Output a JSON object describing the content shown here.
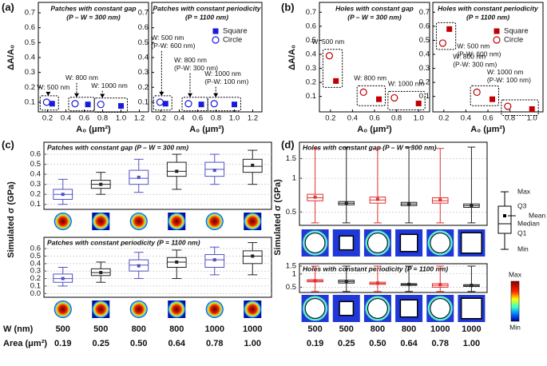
{
  "panel_labels": [
    "(a)",
    "(b)",
    "(c)",
    "(d)"
  ],
  "chart_data": [
    {
      "type": "scatter",
      "title": "Patches with constant gap",
      "subtitle": "(P – W = 300 nm)",
      "ylabel": "ΔA/A₀",
      "xlabel": "A₀ (μm²)",
      "xlim": [
        0.1,
        1.3
      ],
      "ylim": [
        0.035,
        0.77
      ],
      "xticks": [
        0.2,
        0.4,
        0.6,
        0.8,
        {
          "value": 1,
          "label": "1.0"
        },
        1.2
      ],
      "yticks": [
        0.1,
        0.2,
        0.3,
        0.4,
        0.5,
        0.6,
        0.7
      ],
      "series": [
        {
          "name": "Square",
          "color": "#1a1adb",
          "marker": "square",
          "x": [
            0.25,
            0.64,
            1.0
          ],
          "values": [
            0.09,
            0.085,
            0.075
          ]
        },
        {
          "name": "Circle",
          "color": "#1a1adb",
          "marker": "circle",
          "x": [
            0.19,
            0.5,
            0.78
          ],
          "values": [
            0.1,
            0.09,
            0.085
          ]
        }
      ],
      "annotations": [
        [
          "W: 500 nm"
        ],
        [
          "W: 800 nm"
        ],
        [
          "W: 1000 nm"
        ]
      ]
    },
    {
      "type": "scatter",
      "title": "Patches with constant periodicity",
      "subtitle": "(P = 1100 nm)",
      "xlabel": "A₀ (μm²)",
      "xlim": [
        0.1,
        1.3
      ],
      "ylim": [
        0.035,
        0.77
      ],
      "xticks": [
        0.2,
        0.4,
        0.6,
        0.8,
        {
          "value": 1,
          "label": "1.0"
        },
        1.2
      ],
      "yticks": [
        0.1,
        0.2,
        0.3,
        0.4,
        0.5,
        0.6,
        0.7
      ],
      "legend": "top-right",
      "series": [
        {
          "name": "Square",
          "color": "#1a1adb",
          "marker": "square",
          "x": [
            0.25,
            0.64,
            1.0
          ],
          "values": [
            0.09,
            0.085,
            0.085
          ]
        },
        {
          "name": "Circle",
          "color": "#1a1adb",
          "marker": "circle",
          "x": [
            0.19,
            0.5,
            0.78
          ],
          "values": [
            0.1,
            0.09,
            0.09
          ]
        }
      ],
      "annotations": [
        [
          "W: 500 nm",
          "(P-W: 600 nm)"
        ],
        [
          "W: 800 nm",
          "(P-W: 300 nm)"
        ],
        [
          "W: 1000 nm",
          "(P-W: 100 nm)"
        ]
      ]
    },
    {
      "type": "scatter",
      "title": "Holes with constant gap",
      "subtitle": "(P – W = 300 nm)",
      "ylabel": "ΔA/A₀",
      "xlabel": "A₀ (μm²)",
      "xlim": [
        0.1,
        1.1
      ],
      "ylim": [
        -0.01,
        0.77
      ],
      "xticks": [
        0.2,
        0.4,
        0.6,
        0.8,
        {
          "value": 1,
          "label": "1.0"
        }
      ],
      "yticks": [
        0.1,
        0.2,
        0.3,
        0.4,
        0.5,
        0.6,
        0.7
      ],
      "series": [
        {
          "name": "Square",
          "color": "#c00000",
          "marker": "square",
          "x": [
            0.25,
            0.64,
            1.0
          ],
          "values": [
            0.21,
            0.08,
            0.05
          ]
        },
        {
          "name": "Circle",
          "color": "#c00000",
          "marker": "circle",
          "x": [
            0.19,
            0.5,
            0.78
          ],
          "values": [
            0.39,
            0.13,
            0.09
          ]
        }
      ],
      "annotations": [
        [
          "W: 500 nm"
        ],
        [
          "W: 800 nm"
        ],
        [
          "W: 1000 nm"
        ]
      ]
    },
    {
      "type": "scatter",
      "title": "Holes with constant periodicity",
      "subtitle": "(P = 1100 nm)",
      "xlabel": "A₀ (μm²)",
      "xlim": [
        0.1,
        1.1
      ],
      "ylim": [
        -0.01,
        0.77
      ],
      "xticks": [
        0.2,
        0.4,
        0.6,
        0.8,
        {
          "value": 1,
          "label": "1.0"
        }
      ],
      "yticks": [
        0.1,
        0.2,
        0.3,
        0.4,
        0.5,
        0.6,
        0.7
      ],
      "legend": "top-right",
      "series": [
        {
          "name": "Square",
          "color": "#c00000",
          "marker": "square",
          "x": [
            0.25,
            0.64,
            1.0
          ],
          "values": [
            0.58,
            0.08,
            0.01
          ]
        },
        {
          "name": "Circle",
          "color": "#c00000",
          "marker": "circle",
          "x": [
            0.19,
            0.5,
            0.78
          ],
          "values": [
            0.48,
            0.13,
            0.03
          ]
        }
      ],
      "annotations": [
        [
          "W: 500 nm",
          "(P-W: 600 nm)"
        ],
        [
          "W: 800 nm",
          "(P-W: 300 nm)"
        ],
        [
          "W: 1000 nm",
          "(P-W: 100 nm)"
        ]
      ]
    },
    {
      "type": "box",
      "title": "Patches with constant gap (P – W = 300 nm)",
      "ylabel": "Simulated σ (GPa)",
      "grid": true,
      "ylim": [
        0.05,
        0.72
      ],
      "yticks": [
        0.1,
        0.2,
        0.3,
        0.4,
        0.5,
        0.6
      ],
      "boxes": [
        {
          "min": 0.1,
          "q1": 0.15,
          "median": 0.2,
          "q3": 0.25,
          "max": 0.35,
          "mean": 0.2,
          "color": "#5050c8"
        },
        {
          "min": 0.2,
          "q1": 0.26,
          "median": 0.3,
          "q3": 0.34,
          "max": 0.42,
          "mean": 0.3,
          "color": "#222222"
        },
        {
          "min": 0.22,
          "q1": 0.3,
          "median": 0.36,
          "q3": 0.44,
          "max": 0.55,
          "mean": 0.37,
          "color": "#5050c8"
        },
        {
          "min": 0.25,
          "q1": 0.38,
          "median": 0.43,
          "q3": 0.52,
          "max": 0.6,
          "mean": 0.43,
          "color": "#222222"
        },
        {
          "min": 0.3,
          "q1": 0.38,
          "median": 0.45,
          "q3": 0.52,
          "max": 0.6,
          "mean": 0.44,
          "color": "#5050c8"
        },
        {
          "min": 0.3,
          "q1": 0.42,
          "median": 0.48,
          "q3": 0.55,
          "max": 0.64,
          "mean": 0.49,
          "color": "#222222"
        }
      ]
    },
    {
      "type": "box",
      "title": "Patches with constant periodicity (P = 1100 nm)",
      "grid": true,
      "ylim": [
        -0.05,
        0.75
      ],
      "yticks": [
        {
          "value": 0,
          "label": "0.0"
        },
        0.1,
        0.2,
        0.3,
        0.4,
        0.5,
        0.6
      ],
      "boxes": [
        {
          "min": 0.1,
          "q1": 0.15,
          "median": 0.2,
          "q3": 0.26,
          "max": 0.35,
          "mean": 0.2,
          "color": "#5050c8"
        },
        {
          "min": 0.15,
          "q1": 0.24,
          "median": 0.28,
          "q3": 0.33,
          "max": 0.42,
          "mean": 0.28,
          "color": "#222222"
        },
        {
          "min": 0.2,
          "q1": 0.3,
          "median": 0.38,
          "q3": 0.45,
          "max": 0.55,
          "mean": 0.37,
          "color": "#5050c8"
        },
        {
          "min": 0.2,
          "q1": 0.35,
          "median": 0.42,
          "q3": 0.48,
          "max": 0.58,
          "mean": 0.42,
          "color": "#222222"
        },
        {
          "min": 0.25,
          "q1": 0.35,
          "median": 0.45,
          "q3": 0.52,
          "max": 0.62,
          "mean": 0.45,
          "color": "#5050c8"
        },
        {
          "min": 0.25,
          "q1": 0.4,
          "median": 0.5,
          "q3": 0.57,
          "max": 0.68,
          "mean": 0.5,
          "color": "#222222"
        }
      ]
    },
    {
      "type": "box",
      "title": "Holes with constant gap (P – W = 300 nm)",
      "ylabel": "Simulated σ (GPa)",
      "grid": true,
      "log": true,
      "ylim": [
        0.38,
        2.1
      ],
      "yticks": [
        0.5,
        1,
        1.5
      ],
      "boxes": [
        {
          "min": 0.4,
          "q1": 0.63,
          "median": 0.67,
          "q3": 0.72,
          "max": 1.85,
          "mean": 0.68,
          "color": "#e03030"
        },
        {
          "min": 0.4,
          "q1": 0.58,
          "median": 0.6,
          "q3": 0.62,
          "max": 1.9,
          "mean": 0.6,
          "color": "#222222"
        },
        {
          "min": 0.4,
          "q1": 0.6,
          "median": 0.64,
          "q3": 0.68,
          "max": 1.85,
          "mean": 0.65,
          "color": "#e03030"
        },
        {
          "min": 0.4,
          "q1": 0.57,
          "median": 0.59,
          "q3": 0.61,
          "max": 1.9,
          "mean": 0.59,
          "color": "#222222"
        },
        {
          "min": 0.4,
          "q1": 0.6,
          "median": 0.63,
          "q3": 0.67,
          "max": 1.85,
          "mean": 0.64,
          "color": "#e03030"
        },
        {
          "min": 0.4,
          "q1": 0.55,
          "median": 0.57,
          "q3": 0.59,
          "max": 1.9,
          "mean": 0.57,
          "color": "#222222"
        }
      ]
    },
    {
      "type": "box",
      "title": "Holes with constant periodicity (P = 1100 nm)",
      "grid": true,
      "log": true,
      "ylim": [
        0.38,
        1.7
      ],
      "yticks": [
        0.5,
        1,
        1.5
      ],
      "boxes": [
        {
          "min": 0.4,
          "q1": 0.66,
          "median": 0.7,
          "q3": 0.74,
          "max": 1.5,
          "mean": 0.7,
          "color": "#e03030"
        },
        {
          "min": 0.4,
          "q1": 0.62,
          "median": 0.67,
          "q3": 0.72,
          "max": 1.5,
          "mean": 0.67,
          "color": "#222222"
        },
        {
          "min": 0.4,
          "q1": 0.58,
          "median": 0.61,
          "q3": 0.65,
          "max": 1.5,
          "mean": 0.62,
          "color": "#e03030"
        },
        {
          "min": 0.4,
          "q1": 0.55,
          "median": 0.58,
          "q3": 0.6,
          "max": 1.5,
          "mean": 0.58,
          "color": "#222222"
        },
        {
          "min": 0.4,
          "q1": 0.5,
          "median": 0.55,
          "q3": 0.6,
          "max": 1.5,
          "mean": 0.57,
          "color": "#e03030"
        },
        {
          "min": 0.4,
          "q1": 0.52,
          "median": 0.55,
          "q3": 0.57,
          "max": 1.5,
          "mean": 0.55,
          "color": "#222222"
        }
      ]
    }
  ],
  "table": {
    "rows": [
      {
        "label": "W (nm)",
        "values": [
          "500",
          "500",
          "800",
          "800",
          "1000",
          "1000",
          "500",
          "500",
          "800",
          "800",
          "1000",
          "1000"
        ]
      },
      {
        "label": "Area (μm²)",
        "values": [
          "0.19",
          "0.25",
          "0.50",
          "0.64",
          "0.78",
          "1.00",
          "0.19",
          "0.25",
          "0.50",
          "0.64",
          "0.78",
          "1.00"
        ]
      }
    ]
  },
  "box_legend": [
    "Max",
    "Q3",
    "Mean",
    "Median",
    "Q1",
    "Min"
  ],
  "colorbar": [
    "Max",
    "Min"
  ]
}
